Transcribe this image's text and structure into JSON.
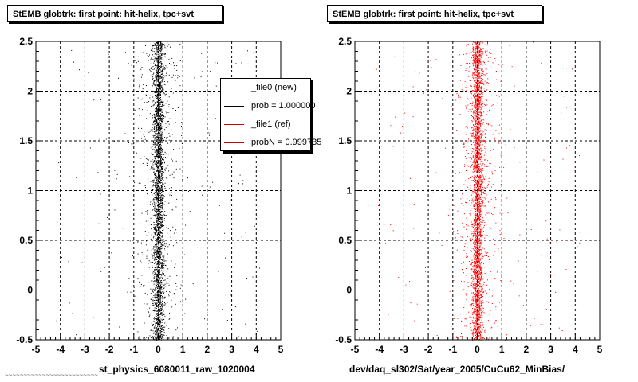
{
  "chart_data": [
    {
      "type": "scatter",
      "title": "StEMB globtrk: first point: hit-helix, tpc+svt",
      "xlabel": "st_physics_6080011_raw_1020004",
      "ylabel": "",
      "xlim": [
        -5,
        5
      ],
      "ylim": [
        -0.5,
        2.5
      ],
      "x_ticks": [
        "-5",
        "-4",
        "-3",
        "-2",
        "-1",
        "0",
        "1",
        "2",
        "3",
        "4",
        "5"
      ],
      "y_ticks": [
        "-0.5",
        "0",
        "0.5",
        "1",
        "1.5",
        "2",
        "2.5"
      ],
      "grid": true,
      "color": "#000000",
      "series": [
        {
          "distribution": "vertical band of points concentrated near x = 0 spanning the full y range, with sparse scatter out to |x| ~ 4",
          "core_x_range": [
            -0.2,
            0.2
          ],
          "y_range": [
            -0.5,
            2.5
          ]
        }
      ],
      "legend": {
        "position": "top-right",
        "entries": [
          {
            "label": "_file0 (new)",
            "color": "#000000"
          },
          {
            "label": "prob = 1.000000",
            "color": "#000000"
          },
          {
            "label": "_file1 (ref)",
            "color": "#cc0000"
          },
          {
            "label": "probN = 0.999735",
            "color": "#cc0000"
          }
        ]
      }
    },
    {
      "type": "scatter",
      "title": "StEMB globtrk: first point: hit-helix, tpc+svt",
      "xlabel": "dev/daq_sl302/Sat/year_2005/CuCu62_MinBias/",
      "ylabel": "",
      "xlim": [
        -5,
        5
      ],
      "ylim": [
        -0.5,
        2.5
      ],
      "x_ticks": [
        "-5",
        "-4",
        "-3",
        "-2",
        "-1",
        "0",
        "1",
        "2",
        "3",
        "4",
        "5"
      ],
      "y_ticks": [
        "-0.5",
        "0",
        "0.5",
        "1",
        "1.5",
        "2",
        "2.5"
      ],
      "grid": true,
      "color": "#ff0000",
      "series": [
        {
          "distribution": "vertical band of points concentrated near x = 0 spanning the full y range, with sparse scatter out to |x| ~ 4",
          "core_x_range": [
            -0.2,
            0.2
          ],
          "y_range": [
            -0.5,
            2.5
          ]
        }
      ]
    }
  ],
  "footer_note": "~~~~~~~~~~~~~~~~~~~~~~~~~"
}
